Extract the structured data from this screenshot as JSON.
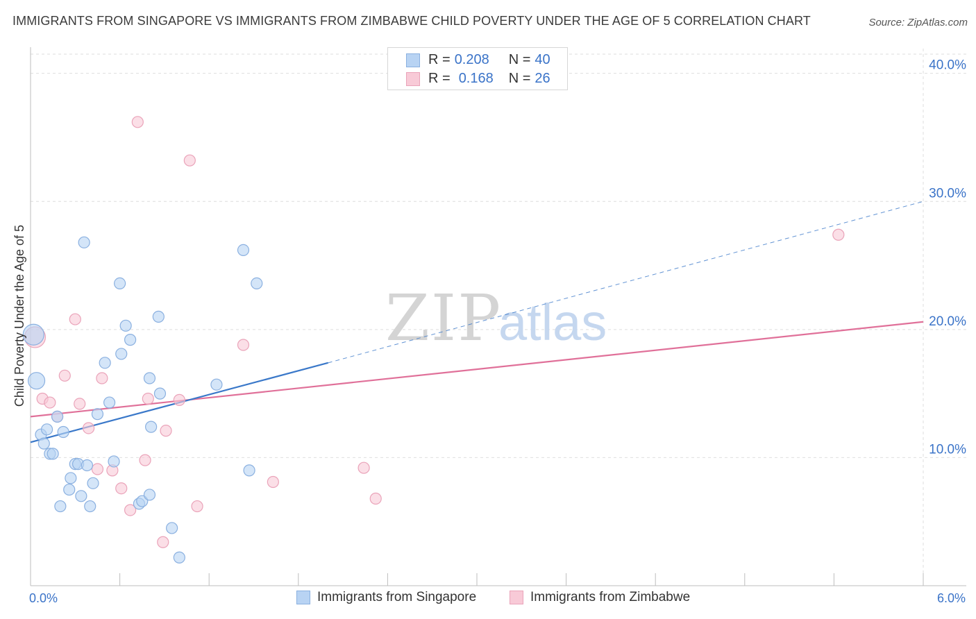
{
  "title": "IMMIGRANTS FROM SINGAPORE VS IMMIGRANTS FROM ZIMBABWE CHILD POVERTY UNDER THE AGE OF 5 CORRELATION CHART",
  "source": "Source: ZipAtlas.com",
  "watermark": {
    "zip": "ZIP",
    "atlas": "atlas"
  },
  "legend_top": {
    "rows": [
      {
        "r_label": "R = ",
        "r_value": "0.208",
        "n_label": "N = ",
        "n_value": "40",
        "color": "#a9c8f0"
      },
      {
        "r_label": "R = ",
        "r_value": "0.168",
        "n_label": "N = ",
        "n_value": "26",
        "color": "#f5b8ca"
      }
    ]
  },
  "bottom_legend": [
    {
      "label": "Immigrants from Singapore",
      "fill": "#b8d3f3",
      "stroke": "#8ab0e0"
    },
    {
      "label": "Immigrants from Zimbabwe",
      "fill": "#f8cad7",
      "stroke": "#eaa3b9"
    }
  ],
  "chart_data": {
    "type": "scatter",
    "title": "IMMIGRANTS FROM SINGAPORE VS IMMIGRANTS FROM ZIMBABWE CHILD POVERTY UNDER THE AGE OF 5 CORRELATION CHART",
    "xlabel": "",
    "ylabel": "Child Poverty Under the Age of 5",
    "xlim": [
      0,
      6
    ],
    "ylim": [
      0,
      41.5
    ],
    "x_tick_labels": [
      "0.0%",
      "6.0%"
    ],
    "y_ticks": [
      10,
      20,
      30,
      40
    ],
    "y_tick_labels": [
      "10.0%",
      "20.0%",
      "30.0%",
      "40.0%"
    ],
    "grid": true,
    "legend_placement": "top-center",
    "series": [
      {
        "name": "Immigrants from Singapore",
        "color": "#3a78c9",
        "fill": "#b8d3f3",
        "stroke": "#8ab0e0",
        "points": [
          [
            0.02,
            19.6
          ],
          [
            0.04,
            16.0
          ],
          [
            0.07,
            11.8
          ],
          [
            0.09,
            11.1
          ],
          [
            0.11,
            12.2
          ],
          [
            0.13,
            10.3
          ],
          [
            0.15,
            10.3
          ],
          [
            0.18,
            13.2
          ],
          [
            0.2,
            6.2
          ],
          [
            0.22,
            12.0
          ],
          [
            0.26,
            7.5
          ],
          [
            0.27,
            8.4
          ],
          [
            0.3,
            9.5
          ],
          [
            0.32,
            9.5
          ],
          [
            0.34,
            7.0
          ],
          [
            0.36,
            26.8
          ],
          [
            0.38,
            9.4
          ],
          [
            0.4,
            6.2
          ],
          [
            0.42,
            8.0
          ],
          [
            0.45,
            13.4
          ],
          [
            0.5,
            17.4
          ],
          [
            0.53,
            14.3
          ],
          [
            0.56,
            9.7
          ],
          [
            0.6,
            23.6
          ],
          [
            0.61,
            18.1
          ],
          [
            0.64,
            20.3
          ],
          [
            0.67,
            19.2
          ],
          [
            0.73,
            6.4
          ],
          [
            0.75,
            6.6
          ],
          [
            0.8,
            7.1
          ],
          [
            0.8,
            16.2
          ],
          [
            0.81,
            12.4
          ],
          [
            0.86,
            21.0
          ],
          [
            0.87,
            15.0
          ],
          [
            0.95,
            4.5
          ],
          [
            1.0,
            2.2
          ],
          [
            1.25,
            15.7
          ],
          [
            1.43,
            26.2
          ],
          [
            1.47,
            9.0
          ],
          [
            1.52,
            23.6
          ]
        ],
        "trend": {
          "x0": 0.0,
          "y0": 11.2,
          "x1": 2.0,
          "y1": 17.4,
          "dash_x1": 6.0,
          "dash_y1": 30.0
        }
      },
      {
        "name": "Immigrants from Zimbabwe",
        "color": "#e07099",
        "fill": "#f8cad7",
        "stroke": "#eaa3b9",
        "points": [
          [
            0.03,
            19.4
          ],
          [
            0.08,
            14.6
          ],
          [
            0.13,
            14.3
          ],
          [
            0.18,
            13.2
          ],
          [
            0.23,
            16.4
          ],
          [
            0.3,
            20.8
          ],
          [
            0.33,
            14.2
          ],
          [
            0.39,
            12.3
          ],
          [
            0.45,
            9.1
          ],
          [
            0.48,
            16.2
          ],
          [
            0.55,
            9.0
          ],
          [
            0.61,
            7.6
          ],
          [
            0.67,
            5.9
          ],
          [
            0.72,
            36.2
          ],
          [
            0.77,
            9.8
          ],
          [
            0.79,
            14.6
          ],
          [
            0.89,
            3.4
          ],
          [
            0.91,
            12.1
          ],
          [
            1.0,
            14.5
          ],
          [
            1.07,
            33.2
          ],
          [
            1.12,
            6.2
          ],
          [
            1.43,
            18.8
          ],
          [
            1.63,
            8.1
          ],
          [
            2.24,
            9.2
          ],
          [
            2.32,
            6.8
          ],
          [
            5.43,
            27.4
          ]
        ],
        "trend": {
          "x0": 0.0,
          "y0": 13.2,
          "x1": 6.0,
          "y1": 20.6
        }
      }
    ]
  }
}
